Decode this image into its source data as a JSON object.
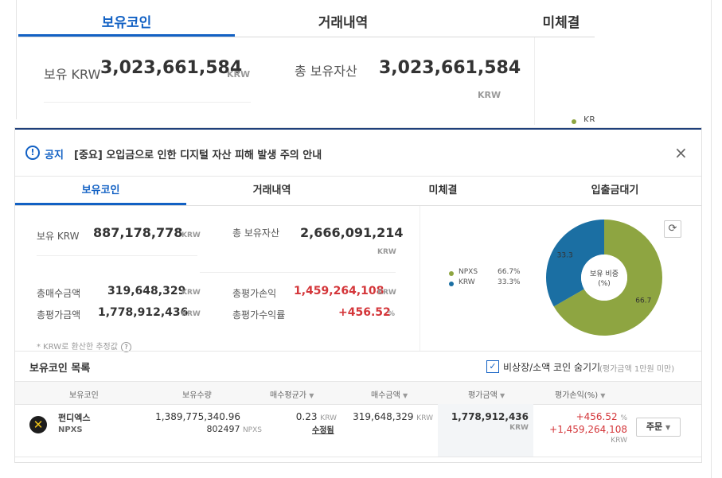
{
  "top_panel": {
    "tabs": [
      "보유코인",
      "거래내역",
      "미체결"
    ],
    "krw_label": "보유 KRW",
    "krw_value": "3,023,661,584",
    "krw_unit": "KRW",
    "total_label": "총 보유자산",
    "total_value": "3,023,661,584",
    "total_unit": "KRW",
    "legend_partial": "KR"
  },
  "notice": {
    "icon_symbol": "!",
    "label": "공지",
    "text": "[중요] 오입금으로 인한 디지털 자산 피해 발생 주의 안내",
    "close": "×"
  },
  "tabs": [
    "보유코인",
    "거래내역",
    "미체결",
    "입출금대기"
  ],
  "summary": {
    "krw_label": "보유 KRW",
    "krw_value": "887,178,778",
    "total_label": "총 보유자산",
    "total_value": "2,666,091,214",
    "buy_total_label": "총매수금액",
    "buy_total_value": "319,648,329",
    "pl_label": "총평가손익",
    "pl_value": "1,459,264,108",
    "eval_label": "총평가금액",
    "eval_value": "1,778,912,436",
    "return_label": "총평가수익률",
    "return_value": "+456.52",
    "unit_krw": "KRW",
    "unit_pct": "%",
    "hint": "* KRW로 환산한 추정값",
    "hint_icon": "?"
  },
  "holdings_chart": {
    "center_label": "보유 비중\n(%)",
    "refresh_icon": "⟳",
    "colors": {
      "NPXS": "#8ea541",
      "KRW": "#1b6fa3"
    }
  },
  "chart_data": {
    "type": "pie",
    "title": "보유 비중 (%)",
    "categories": [
      "NPXS",
      "KRW"
    ],
    "values": [
      66.7,
      33.3
    ],
    "legend": [
      {
        "name": "NPXS",
        "value": "66.7%"
      },
      {
        "name": "KRW",
        "value": "33.3%"
      }
    ],
    "legend_position": "left"
  },
  "list": {
    "title": "보유코인 목록",
    "hide_small_label": "비상장/소액 코인 숨기기",
    "hide_small_note": "(평가금액 1만원 미만)",
    "hide_small_checked": "✓",
    "columns": [
      "보유코인",
      "보유수량",
      "매수평균가",
      "매수금액",
      "평가금액",
      "평가손익(%)"
    ],
    "sort_caret": "▼"
  },
  "rows": [
    {
      "icon_symbol": "✕",
      "name": "펀디엑스",
      "symbol": "NPXS",
      "qty_line1": "1,389,775,340.96",
      "qty_line2": "802497",
      "qty_unit": "NPXS",
      "avg_price": "0.23",
      "avg_unit": "KRW",
      "modify_label": "수정됨",
      "buy_amount": "319,648,329",
      "buy_unit": "KRW",
      "eval_amount": "1,778,912,436",
      "eval_unit": "KRW",
      "pl_pct": "+456.52",
      "pl_pct_unit": "%",
      "pl_amount": "+1,459,264,108",
      "pl_unit": "KRW",
      "order_label": "주문",
      "order_caret": "▼"
    }
  ]
}
